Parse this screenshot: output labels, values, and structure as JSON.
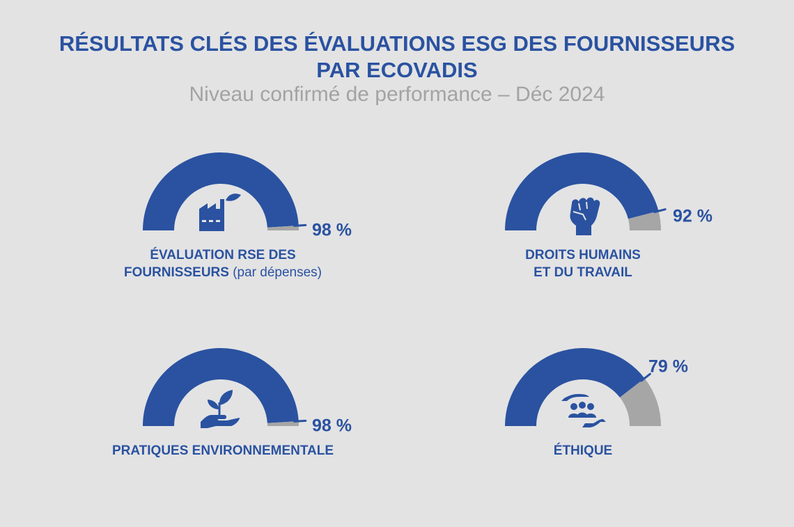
{
  "header": {
    "title_line1": "RÉSULTATS CLÉS DES ÉVALUATIONS ESG DES FOURNISSEURS",
    "title_line2": "PAR ECOVADIS",
    "subtitle": "Niveau confirmé de performance – Déc 2024"
  },
  "colors": {
    "background": "#e3e3e4",
    "accent": "#2a52a0",
    "remainder": "#a6a6a6",
    "subtitle": "#a3a3a3"
  },
  "chart_data": [
    {
      "type": "gauge",
      "value": 98,
      "value_label": "98 %",
      "label_bold": "ÉVALUATION RSE DES",
      "label_bold2": "FOURNISSEURS",
      "label_normal": "(par dépenses)",
      "icon": "factory-icon"
    },
    {
      "type": "gauge",
      "value": 92,
      "value_label": "92 %",
      "label_bold": "DROITS HUMAINS",
      "label_bold2": "ET DU TRAVAIL",
      "icon": "raised-fist-icon"
    },
    {
      "type": "gauge",
      "value": 98,
      "value_label": "98 %",
      "label_bold": "PRATIQUES ENVIRONNEMENTALE",
      "icon": "plant-in-hand-icon"
    },
    {
      "type": "gauge",
      "value": 79,
      "value_label": "79 %",
      "label_bold": "ÉTHIQUE",
      "icon": "protected-group-icon"
    }
  ]
}
